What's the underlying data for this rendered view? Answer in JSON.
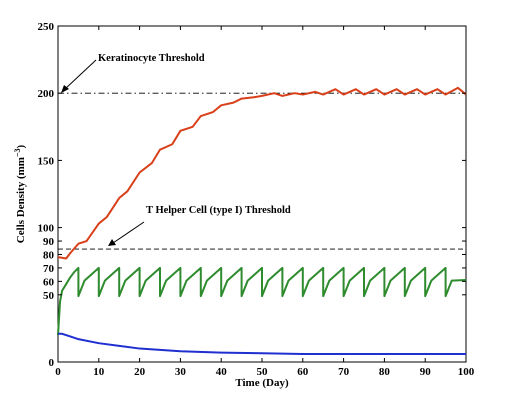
{
  "chart_data": {
    "type": "line",
    "title": "",
    "xlabel": "Time (Day)",
    "ylabel": "Cells Density (mm",
    "ylabel_sup": "−3",
    "ylabel_close": ")",
    "xlim": [
      0,
      100
    ],
    "ylim": [
      0,
      250
    ],
    "xticks": [
      0,
      10,
      20,
      30,
      40,
      50,
      60,
      70,
      80,
      90,
      100
    ],
    "yticks": [
      0,
      50,
      60,
      70,
      80,
      90,
      100,
      150,
      200,
      250
    ],
    "grid": false,
    "legend": "none",
    "thresholds": [
      {
        "label": "Keratinocyte Threshold",
        "y": 200,
        "style": "dash-dot"
      },
      {
        "label": "T Helper Cell (type I) Threshold",
        "y": 84,
        "style": "dashed"
      }
    ],
    "series": [
      {
        "color": "#d9401a",
        "x": [
          0,
          2,
          3,
          5,
          7,
          10,
          12,
          15,
          17,
          20,
          23,
          25,
          28,
          30,
          33,
          35,
          38,
          40,
          43,
          45,
          48,
          50,
          53,
          55,
          58,
          60,
          63,
          65,
          68,
          70,
          73,
          75,
          78,
          80,
          83,
          85,
          88,
          90,
          93,
          95,
          98,
          100
        ],
        "y": [
          78,
          77,
          81,
          88,
          90,
          103,
          108,
          122,
          127,
          141,
          148,
          158,
          162,
          172,
          175,
          183,
          186,
          191,
          193,
          196,
          197,
          198,
          200,
          198,
          200,
          199,
          201,
          199,
          203,
          199,
          203,
          199,
          203,
          199,
          203,
          199,
          203,
          199,
          203,
          199,
          204,
          199
        ]
      },
      {
        "color": "#2e8b2e",
        "x": [
          0,
          0.5,
          1,
          2,
          3,
          4,
          5
        ],
        "y": [
          20,
          45,
          53,
          58,
          63,
          67,
          70
        ],
        "period": 5,
        "cycle_min": 49,
        "cycle_max": 70,
        "x_end": 100,
        "end_value": 61
      },
      {
        "color": "#1f2fd0",
        "x": [
          0,
          1,
          3,
          5,
          10,
          15,
          20,
          25,
          30,
          40,
          50,
          60,
          70,
          80,
          90,
          100
        ],
        "y": [
          21,
          21,
          19,
          17,
          14,
          12,
          10,
          9,
          8,
          7,
          6.5,
          6,
          6,
          6,
          6,
          6
        ]
      }
    ]
  }
}
